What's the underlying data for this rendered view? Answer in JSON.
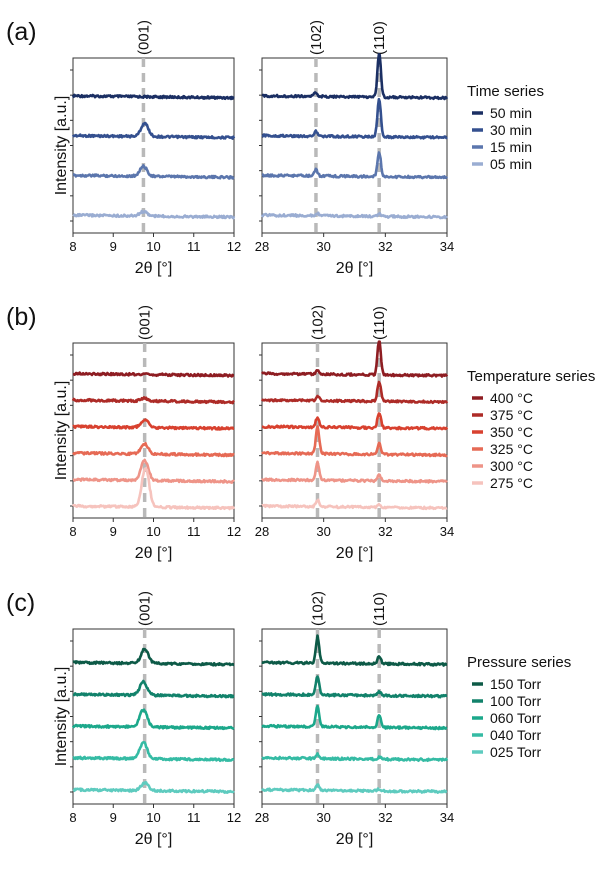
{
  "chart_data": [
    {
      "panel_label": "(a)",
      "legend_title": "Time series",
      "ylabel": "Intensity [a.u.]",
      "colors": [
        "#1b2f63",
        "#34508f",
        "#5b76ad",
        "#9aadd2"
      ],
      "legend": [
        "50 min",
        "30 min",
        "15 min",
        "05 min"
      ],
      "plots": [
        {
          "type": "line",
          "xlabel": "2θ [°]",
          "xlim": [
            8,
            12
          ],
          "xticks": [
            "8",
            "9",
            "10",
            "11",
            "12"
          ],
          "peak_lines": [
            {
              "label": "(001)",
              "x": 9.75
            }
          ],
          "series": [
            {
              "name": "50 min",
              "peaks": []
            },
            {
              "name": "30 min",
              "peaks": [
                {
                  "x": 9.78,
                  "h": 0.6
                }
              ]
            },
            {
              "name": "15 min",
              "peaks": [
                {
                  "x": 9.75,
                  "h": 0.45
                }
              ]
            },
            {
              "name": "05 min",
              "peaks": [
                {
                  "x": 9.75,
                  "h": 0.2
                }
              ]
            }
          ]
        },
        {
          "type": "line",
          "xlabel": "2θ [°]",
          "xlim": [
            28,
            34
          ],
          "xticks": [
            "28",
            "30",
            "32",
            "34"
          ],
          "peak_lines": [
            {
              "label": "(102)",
              "x": 29.75
            },
            {
              "label": "(110)",
              "x": 31.8
            }
          ],
          "series": [
            {
              "name": "50 min",
              "peaks": [
                {
                  "x": 29.75,
                  "h": 0.18
                },
                {
                  "x": 31.8,
                  "h": 2.0
                }
              ]
            },
            {
              "name": "30 min",
              "peaks": [
                {
                  "x": 29.75,
                  "h": 0.22
                },
                {
                  "x": 31.8,
                  "h": 1.7
                }
              ]
            },
            {
              "name": "15 min",
              "peaks": [
                {
                  "x": 29.75,
                  "h": 0.28
                },
                {
                  "x": 31.8,
                  "h": 1.1
                }
              ]
            },
            {
              "name": "05 min",
              "peaks": [
                {
                  "x": 29.8,
                  "h": 0.1
                },
                {
                  "x": 31.8,
                  "h": 0.12
                }
              ]
            }
          ]
        }
      ]
    },
    {
      "panel_label": "(b)",
      "legend_title": "Temperature series",
      "ylabel": "Intensity [a.u.]",
      "colors": [
        "#8e1d22",
        "#ad2b27",
        "#d8412f",
        "#e66a55",
        "#ee9488",
        "#f6c3bd"
      ],
      "legend": [
        "400 °C",
        "375 °C",
        "350 °C",
        "325 °C",
        "300 °C",
        "275 °C"
      ],
      "plots": [
        {
          "type": "line",
          "xlabel": "2θ [°]",
          "xlim": [
            8,
            12
          ],
          "xticks": [
            "8",
            "9",
            "10",
            "11",
            "12"
          ],
          "peak_lines": [
            {
              "label": "(001)",
              "x": 9.78
            }
          ],
          "series": [
            {
              "name": "400 °C",
              "peaks": []
            },
            {
              "name": "375 °C",
              "peaks": [
                {
                  "x": 9.78,
                  "h": 0.12
                }
              ]
            },
            {
              "name": "350 °C",
              "peaks": [
                {
                  "x": 9.78,
                  "h": 0.35
                }
              ]
            },
            {
              "name": "325 °C",
              "peaks": [
                {
                  "x": 9.78,
                  "h": 0.45
                }
              ]
            },
            {
              "name": "300 °C",
              "peaks": [
                {
                  "x": 9.78,
                  "h": 0.9
                }
              ]
            },
            {
              "name": "275 °C",
              "peaks": [
                {
                  "x": 9.8,
                  "h": 1.8
                }
              ]
            }
          ]
        },
        {
          "type": "line",
          "xlabel": "2θ [°]",
          "xlim": [
            28,
            34
          ],
          "xticks": [
            "28",
            "30",
            "32",
            "34"
          ],
          "peak_lines": [
            {
              "label": "(102)",
              "x": 29.8
            },
            {
              "label": "(110)",
              "x": 31.8
            }
          ],
          "series": [
            {
              "name": "400 °C",
              "peaks": [
                {
                  "x": 29.8,
                  "h": 0.15
                },
                {
                  "x": 31.8,
                  "h": 1.55
                }
              ]
            },
            {
              "name": "375 °C",
              "peaks": [
                {
                  "x": 29.8,
                  "h": 0.2
                },
                {
                  "x": 31.8,
                  "h": 0.9
                }
              ]
            },
            {
              "name": "350 °C",
              "peaks": [
                {
                  "x": 29.8,
                  "h": 0.45
                },
                {
                  "x": 31.8,
                  "h": 0.7
                }
              ]
            },
            {
              "name": "325 °C",
              "peaks": [
                {
                  "x": 29.8,
                  "h": 1.2
                },
                {
                  "x": 31.8,
                  "h": 0.5
                }
              ]
            },
            {
              "name": "300 °C",
              "peaks": [
                {
                  "x": 29.8,
                  "h": 0.8
                },
                {
                  "x": 31.8,
                  "h": 0.25
                }
              ]
            },
            {
              "name": "275 °C",
              "peaks": [
                {
                  "x": 29.8,
                  "h": 0.3
                },
                {
                  "x": 31.8,
                  "h": 0.1
                }
              ]
            }
          ]
        }
      ]
    },
    {
      "panel_label": "(c)",
      "legend_title": "Pressure series",
      "ylabel": "Intensity [a.u.]",
      "colors": [
        "#0d5a47",
        "#12826b",
        "#1ca88b",
        "#35bba4",
        "#5ecbbf"
      ],
      "legend": [
        "150 Torr",
        "100 Torr",
        "060 Torr",
        "040 Torr",
        "025 Torr"
      ],
      "plots": [
        {
          "type": "line",
          "xlabel": "2θ [°]",
          "xlim": [
            8,
            12
          ],
          "xticks": [
            "8",
            "9",
            "10",
            "11",
            "12"
          ],
          "peak_lines": [
            {
              "label": "(001)",
              "x": 9.78
            }
          ],
          "series": [
            {
              "name": "150 Torr",
              "peaks": [
                {
                  "x": 9.78,
                  "h": 0.65
                }
              ]
            },
            {
              "name": "100 Torr",
              "peaks": [
                {
                  "x": 9.75,
                  "h": 0.6
                }
              ]
            },
            {
              "name": "060 Torr",
              "peaks": [
                {
                  "x": 9.75,
                  "h": 0.8
                }
              ]
            },
            {
              "name": "040 Torr",
              "peaks": [
                {
                  "x": 9.75,
                  "h": 0.75
                }
              ]
            },
            {
              "name": "025 Torr",
              "peaks": [
                {
                  "x": 9.78,
                  "h": 0.35
                }
              ]
            }
          ]
        },
        {
          "type": "line",
          "xlabel": "2θ [°]",
          "xlim": [
            28,
            34
          ],
          "xticks": [
            "28",
            "30",
            "32",
            "34"
          ],
          "peak_lines": [
            {
              "label": "(102)",
              "x": 29.8
            },
            {
              "label": "(110)",
              "x": 31.8
            }
          ],
          "series": [
            {
              "name": "150 Torr",
              "peaks": [
                {
                  "x": 29.8,
                  "h": 1.2
                },
                {
                  "x": 31.8,
                  "h": 0.35
                }
              ]
            },
            {
              "name": "100 Torr",
              "peaks": [
                {
                  "x": 29.8,
                  "h": 0.85
                },
                {
                  "x": 31.8,
                  "h": 0.18
                }
              ]
            },
            {
              "name": "060 Torr",
              "peaks": [
                {
                  "x": 29.8,
                  "h": 0.95
                },
                {
                  "x": 31.8,
                  "h": 0.55
                }
              ]
            },
            {
              "name": "040 Torr",
              "peaks": [
                {
                  "x": 29.8,
                  "h": 0.2
                },
                {
                  "x": 31.8,
                  "h": 0.08
                }
              ]
            },
            {
              "name": "025 Torr",
              "peaks": [
                {
                  "x": 29.8,
                  "h": 0.28
                },
                {
                  "x": 31.8,
                  "h": 0.08
                }
              ]
            }
          ]
        }
      ]
    }
  ]
}
